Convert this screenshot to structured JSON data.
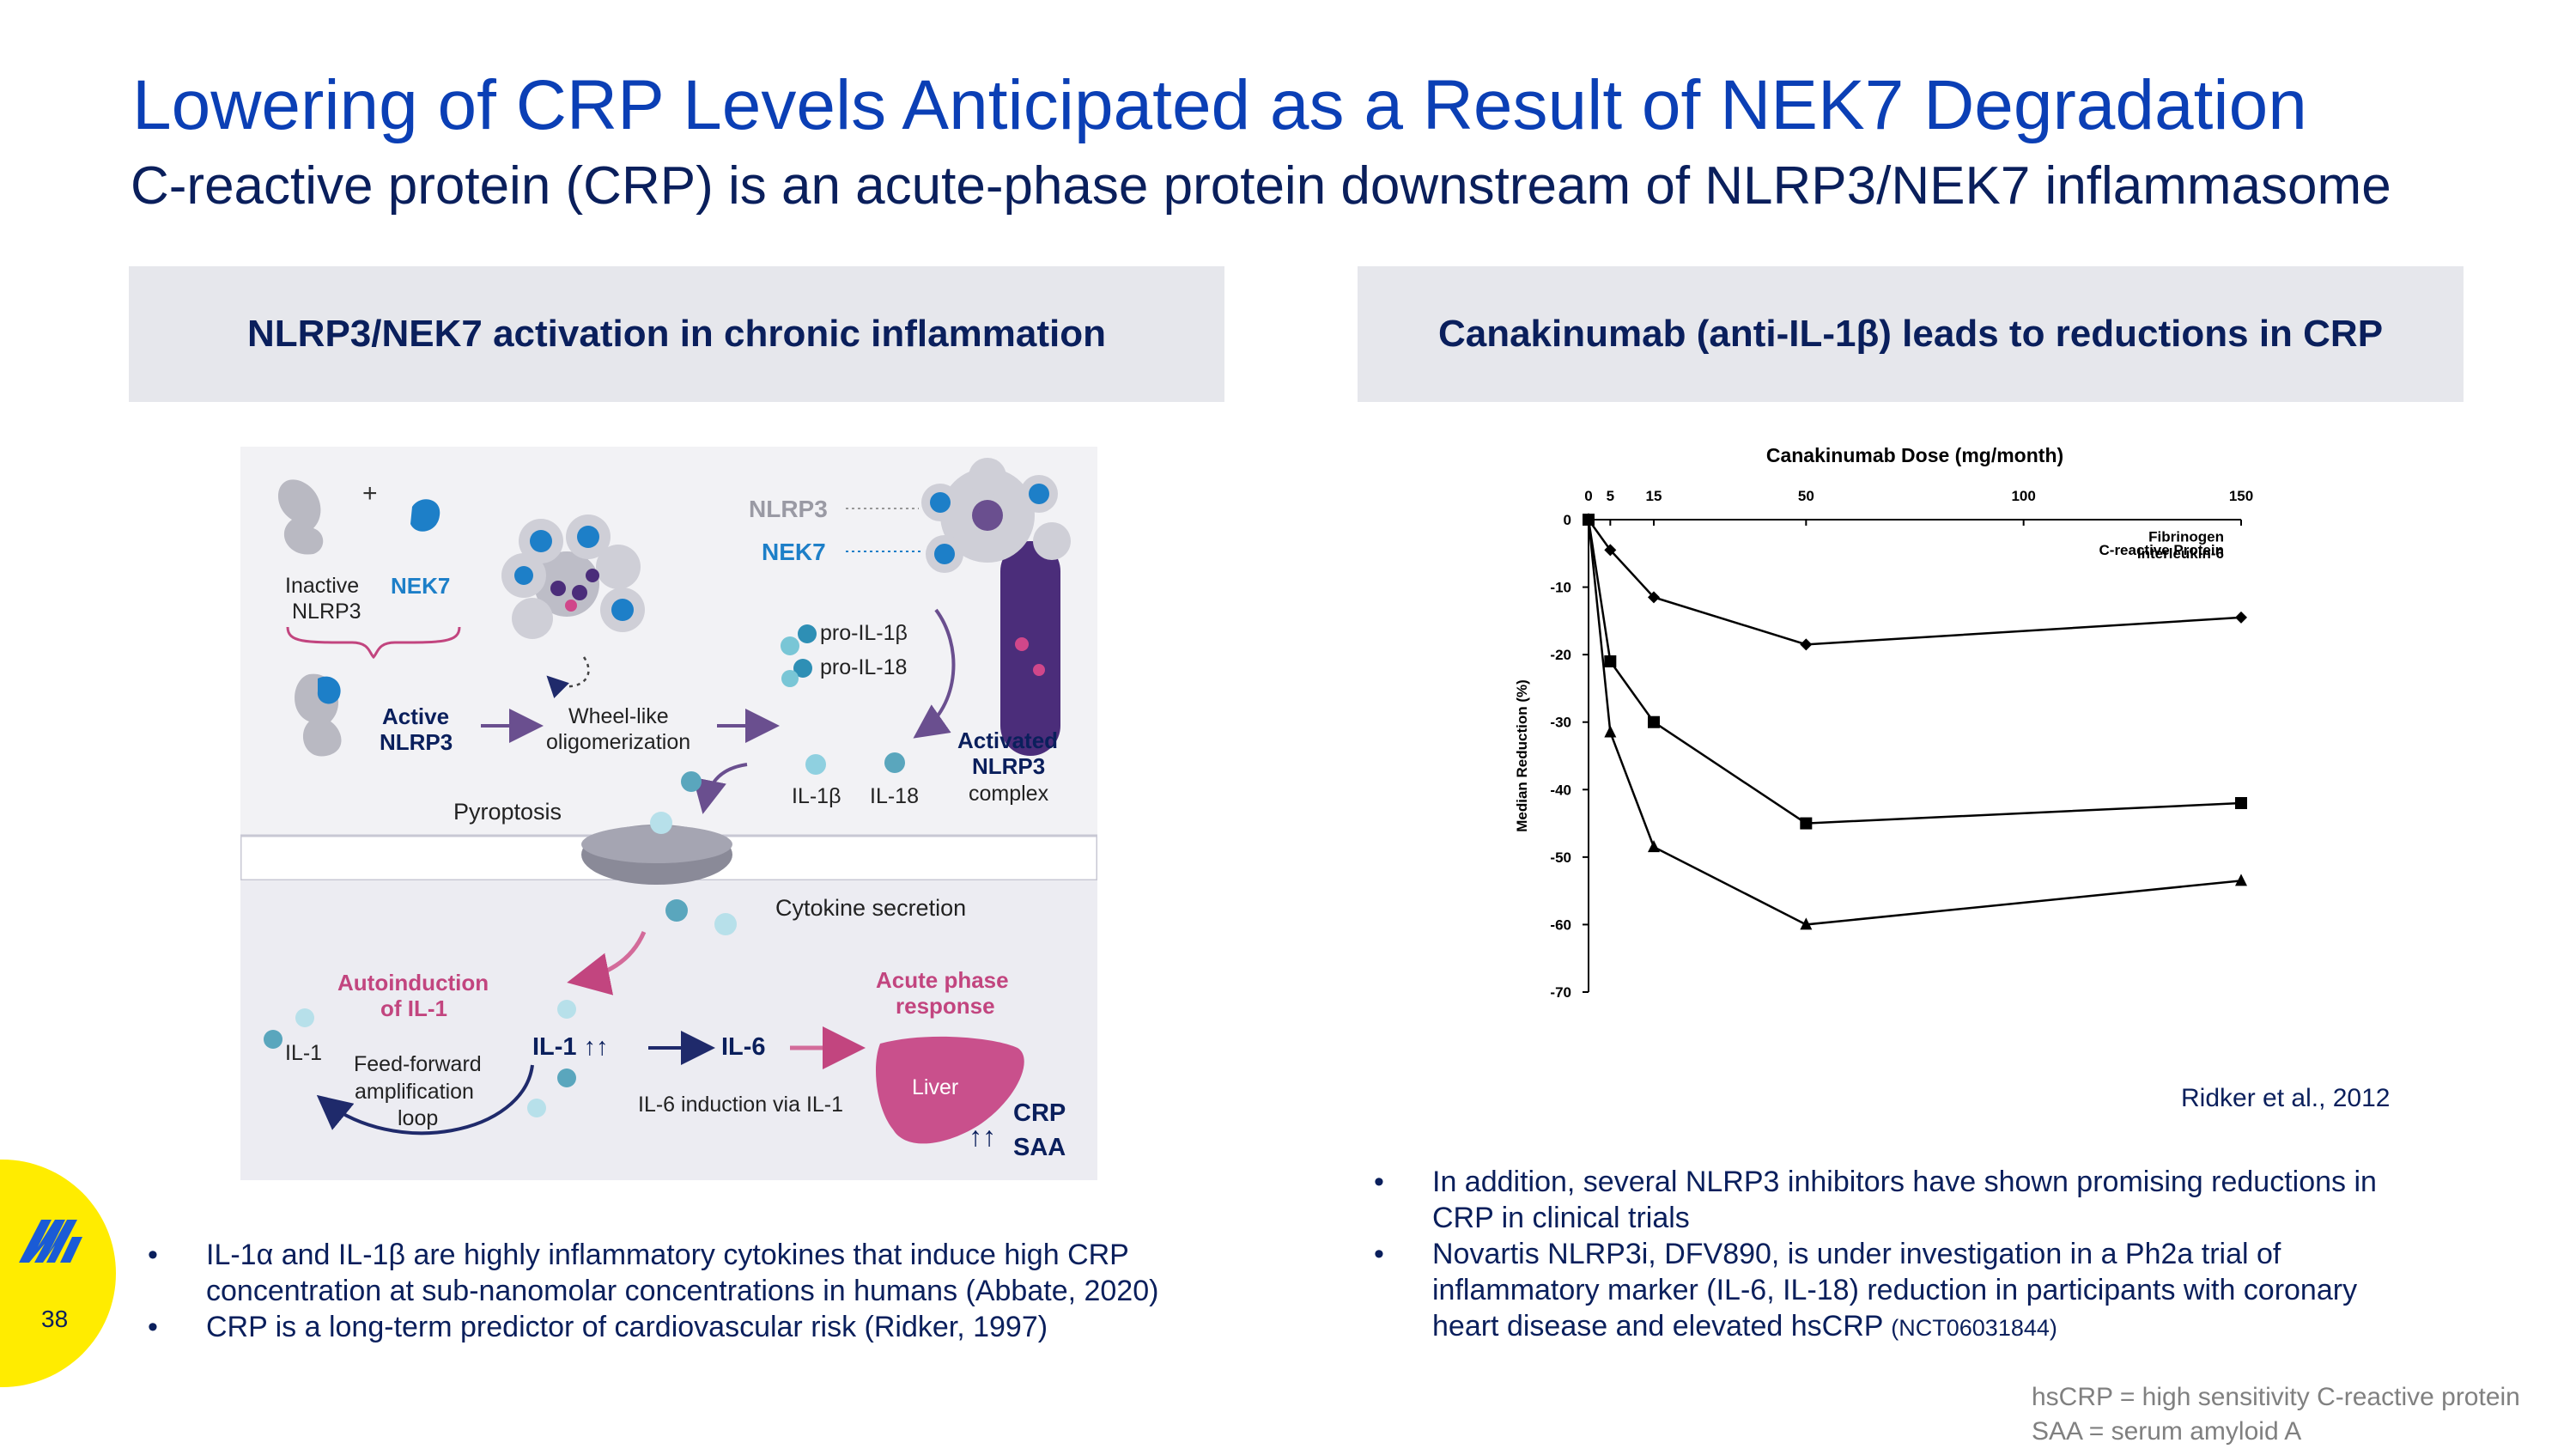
{
  "slide": {
    "title": "Lowering of CRP Levels Anticipated as a Result of NEK7 Degradation",
    "subtitle": "C-reactive protein (CRP) is an acute-phase protein downstream of NLRP3/NEK7 inflammasome",
    "page_number": "38"
  },
  "left_panel": {
    "heading": "NLRP3/NEK7 activation in chronic inflammation",
    "diagram": {
      "plus": "+",
      "inactive": "Inactive",
      "nlrp3": "NLRP3",
      "nek7": "NEK7",
      "active": "Active",
      "active_nlrp3": "NLRP3",
      "wheel_1": "Wheel-like",
      "wheel_2": "oligomerization",
      "label_nlrp3": "NLRP3",
      "label_nek7": "NEK7",
      "pro_il1b": "pro-IL-1β",
      "pro_il18": "pro-IL-18",
      "activated_1": "Activated",
      "activated_2": "NLRP3",
      "activated_3": "complex",
      "il1b": "IL-1β",
      "il18": "IL-18",
      "pyroptosis": "Pyroptosis",
      "cytokine_secretion": "Cytokine secretion",
      "autoinduction_1": "Autoinduction",
      "autoinduction_2": "of IL-1",
      "acute_1": "Acute phase",
      "acute_2": "response",
      "il1_small": "IL-1",
      "feed_1": "Feed-forward",
      "feed_2": "amplification",
      "feed_3": "loop",
      "il1_up": "IL-1 ↑↑",
      "il6": "IL-6",
      "il6_induction": "IL-6 induction via IL-1",
      "liver": "Liver",
      "crp": "CRP",
      "saa": "SAA",
      "up_arrows": "↑↑"
    },
    "bullets": [
      "IL-1α and IL-1β are highly inflammatory cytokines that induce high CRP concentration at sub-nanomolar concentrations in humans (Abbate, 2020)",
      "CRP is a long-term predictor of cardiovascular risk (Ridker, 1997)"
    ]
  },
  "right_panel": {
    "heading": "Canakinumab (anti-IL-1β) leads to reductions in CRP",
    "citation": "Ridker et al., 2012",
    "bullets": [
      {
        "text": "In addition, several NLRP3 inhibitors have shown promising reductions in CRP in clinical trials",
        "note": ""
      },
      {
        "text": "Novartis NLRP3i, DFV890, is under investigation in a Ph2a trial of inflammatory marker (IL-6, IL-18) reduction in participants with coronary heart disease and elevated hsCRP ",
        "note": "(NCT06031844)"
      }
    ]
  },
  "footnotes": [
    "hsCRP = high sensitivity C-reactive protein",
    "SAA = serum amyloid A"
  ],
  "colors": {
    "title_blue": "#0b3fb5",
    "navy": "#0a1f5c",
    "header_gray": "#e6e7ec",
    "logo_yellow": "#ffec00",
    "logo_blue": "#1a5bd6",
    "nek7_blue": "#1d7fc8",
    "magenta": "#c2457f"
  },
  "chart_data": {
    "type": "line",
    "title": "Canakinumab Dose (mg/month)",
    "xlabel": "Canakinumab Dose (mg/month)",
    "ylabel": "Median Reduction (%)",
    "x_axis_position": "top",
    "x_ticks": [
      0,
      5,
      15,
      50,
      100,
      150
    ],
    "y_ticks": [
      0,
      -10,
      -20,
      -30,
      -40,
      -50,
      -60,
      -70
    ],
    "xlim": [
      0,
      150
    ],
    "ylim": [
      -70,
      0
    ],
    "grid": false,
    "series": [
      {
        "name": "Fibrinogen",
        "marker": "diamond",
        "x": [
          0,
          5,
          15,
          50,
          150
        ],
        "y": [
          0,
          -4.5,
          -11.5,
          -18.5,
          -14.5
        ]
      },
      {
        "name": "Interleukin-6",
        "marker": "square",
        "x": [
          0,
          5,
          15,
          50,
          150
        ],
        "y": [
          0,
          -21,
          -30,
          -45,
          -42
        ]
      },
      {
        "name": "C-reactive Protein",
        "marker": "triangle",
        "x": [
          0,
          5,
          15,
          50,
          150
        ],
        "y": [
          0,
          -31.5,
          -48.5,
          -60,
          -53.5
        ]
      }
    ]
  }
}
